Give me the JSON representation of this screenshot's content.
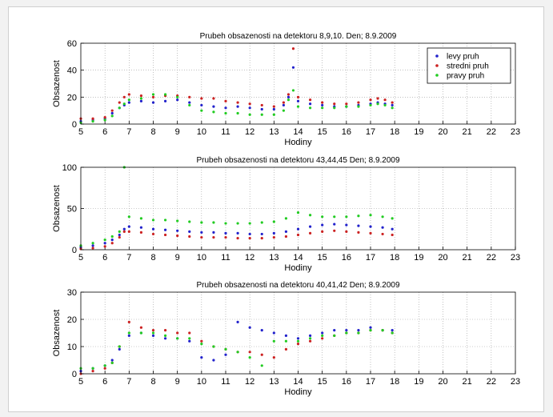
{
  "figure": {
    "legend": {
      "position": "top-right",
      "entries": [
        {
          "label": "levy pruh",
          "color": "#2222cc"
        },
        {
          "label": "stredni pruh",
          "color": "#cc2222"
        },
        {
          "label": "pravy pruh",
          "color": "#22cc22"
        }
      ]
    }
  },
  "chart_data": [
    {
      "type": "scatter",
      "title": "Prubeh obsazenosti na detektoru 8,9,10. Den; 8.9.2009",
      "xlabel": "Hodiny",
      "ylabel": "Obsazenost",
      "xlim": [
        5,
        23
      ],
      "ylim": [
        0,
        60
      ],
      "xticks": [
        5,
        6,
        7,
        8,
        9,
        10,
        11,
        12,
        13,
        14,
        15,
        16,
        17,
        18,
        19,
        20,
        21,
        22,
        23
      ],
      "yticks": [
        0,
        20,
        40,
        60
      ],
      "grid": true,
      "series": [
        {
          "name": "levy pruh",
          "color": "#2222cc",
          "x": [
            5.0,
            5.5,
            6.0,
            6.3,
            6.6,
            6.8,
            7.0,
            7.5,
            8.0,
            8.5,
            9.0,
            9.5,
            10.0,
            10.5,
            11.0,
            11.5,
            12.0,
            12.5,
            13.0,
            13.4,
            13.6,
            13.8,
            14.0,
            14.5,
            15.0,
            15.5,
            16.0,
            16.5,
            17.0,
            17.3,
            17.6,
            17.9
          ],
          "y": [
            2,
            3,
            4,
            8,
            12,
            14,
            16,
            17,
            16,
            17,
            18,
            16,
            14,
            13,
            12,
            13,
            12,
            11,
            11,
            14,
            20,
            42,
            17,
            15,
            14,
            13,
            13,
            14,
            15,
            16,
            15,
            14
          ]
        },
        {
          "name": "stredni pruh",
          "color": "#cc2222",
          "x": [
            5.0,
            5.5,
            6.0,
            6.3,
            6.6,
            6.8,
            7.0,
            7.5,
            8.0,
            8.5,
            9.0,
            9.5,
            10.0,
            10.5,
            11.0,
            11.5,
            12.0,
            12.5,
            13.0,
            13.4,
            13.6,
            13.8,
            14.0,
            14.5,
            15.0,
            15.5,
            16.0,
            16.5,
            17.0,
            17.3,
            17.6,
            17.9
          ],
          "y": [
            4,
            4,
            5,
            10,
            16,
            20,
            22,
            21,
            20,
            21,
            21,
            20,
            19,
            19,
            17,
            16,
            15,
            14,
            13,
            16,
            22,
            56,
            20,
            18,
            16,
            15,
            15,
            16,
            18,
            19,
            18,
            16
          ]
        },
        {
          "name": "pravy pruh",
          "color": "#22cc22",
          "x": [
            5.0,
            5.5,
            6.0,
            6.3,
            6.6,
            6.8,
            7.0,
            7.5,
            8.0,
            8.5,
            9.0,
            9.5,
            10.0,
            10.5,
            11.0,
            11.5,
            12.0,
            12.5,
            13.0,
            13.4,
            13.6,
            13.8,
            14.0,
            14.5,
            15.0,
            15.5,
            16.0,
            16.5,
            17.0,
            17.3,
            17.6,
            17.9
          ],
          "y": [
            1,
            2,
            3,
            6,
            12,
            15,
            18,
            19,
            22,
            22,
            20,
            14,
            10,
            9,
            8,
            8,
            7,
            7,
            7,
            10,
            18,
            25,
            13,
            12,
            12,
            12,
            13,
            13,
            14,
            15,
            14,
            12
          ]
        }
      ]
    },
    {
      "type": "scatter",
      "title": "Prubeh obsazenosti na detektoru 43,44,45 Den; 8.9.2009",
      "xlabel": "Hodiny",
      "ylabel": "Obsazenost",
      "xlim": [
        5,
        23
      ],
      "ylim": [
        0,
        100
      ],
      "xticks": [
        5,
        6,
        7,
        8,
        9,
        10,
        11,
        12,
        13,
        14,
        15,
        16,
        17,
        18,
        19,
        20,
        21,
        22,
        23
      ],
      "yticks": [
        0,
        50,
        100
      ],
      "grid": true,
      "series": [
        {
          "name": "levy pruh",
          "color": "#2222cc",
          "x": [
            5.0,
            5.5,
            6.0,
            6.3,
            6.6,
            6.8,
            7.0,
            7.5,
            8.0,
            8.5,
            9.0,
            9.5,
            10.0,
            10.5,
            11.0,
            11.5,
            12.0,
            12.5,
            13.0,
            13.5,
            14.0,
            14.5,
            15.0,
            15.5,
            16.0,
            16.5,
            17.0,
            17.5,
            17.9
          ],
          "y": [
            3,
            5,
            8,
            12,
            18,
            25,
            28,
            27,
            25,
            24,
            23,
            22,
            21,
            21,
            20,
            20,
            19,
            19,
            20,
            22,
            25,
            28,
            30,
            31,
            30,
            29,
            28,
            27,
            25
          ]
        },
        {
          "name": "stredni pruh",
          "color": "#cc2222",
          "x": [
            5.0,
            5.5,
            6.0,
            6.3,
            6.6,
            6.8,
            7.0,
            7.5,
            8.0,
            8.5,
            9.0,
            9.5,
            10.0,
            10.5,
            11.0,
            11.5,
            12.0,
            12.5,
            13.0,
            13.5,
            14.0,
            14.5,
            15.0,
            15.5,
            16.0,
            16.5,
            17.0,
            17.5,
            17.9
          ],
          "y": [
            1,
            2,
            4,
            8,
            15,
            22,
            22,
            21,
            19,
            18,
            17,
            16,
            15,
            15,
            15,
            14,
            14,
            14,
            15,
            16,
            18,
            20,
            22,
            23,
            22,
            21,
            20,
            19,
            18
          ]
        },
        {
          "name": "pravy pruh",
          "color": "#22cc22",
          "x": [
            5.0,
            5.5,
            6.0,
            6.3,
            6.6,
            6.8,
            7.0,
            7.5,
            8.0,
            8.5,
            9.0,
            9.5,
            10.0,
            10.5,
            11.0,
            11.5,
            12.0,
            12.5,
            13.0,
            13.5,
            14.0,
            14.5,
            15.0,
            15.5,
            16.0,
            16.5,
            17.0,
            17.5,
            17.9
          ],
          "y": [
            5,
            8,
            12,
            16,
            22,
            100,
            40,
            38,
            36,
            36,
            35,
            34,
            33,
            33,
            32,
            32,
            32,
            33,
            34,
            38,
            45,
            42,
            40,
            40,
            40,
            41,
            42,
            40,
            38
          ]
        }
      ]
    },
    {
      "type": "scatter",
      "title": "Prubeh obsazenosti na detektoru 40,41,42 Den; 8.9.2009",
      "xlabel": "Hodiny",
      "ylabel": "Obsazenost",
      "xlim": [
        5,
        23
      ],
      "ylim": [
        0,
        30
      ],
      "xticks": [
        5,
        6,
        7,
        8,
        9,
        10,
        11,
        12,
        13,
        14,
        15,
        16,
        17,
        18,
        19,
        20,
        21,
        22,
        23
      ],
      "yticks": [
        0,
        10,
        20,
        30
      ],
      "grid": true,
      "series": [
        {
          "name": "levy pruh",
          "color": "#2222cc",
          "x": [
            5.0,
            5.5,
            6.0,
            6.3,
            6.6,
            7.0,
            7.5,
            8.0,
            8.5,
            9.0,
            9.5,
            10.0,
            10.5,
            11.0,
            11.5,
            12.0,
            12.5,
            13.0,
            13.5,
            14.0,
            14.5,
            15.0,
            15.5,
            16.0,
            16.5,
            17.0,
            17.5,
            17.9
          ],
          "y": [
            1,
            2,
            3,
            5,
            9,
            14,
            15,
            14,
            13,
            13,
            12,
            6,
            5,
            7,
            19,
            17,
            16,
            15,
            14,
            13,
            14,
            15,
            16,
            16,
            16,
            17,
            16,
            16
          ]
        },
        {
          "name": "stredni pruh",
          "color": "#cc2222",
          "x": [
            5.0,
            5.5,
            6.0,
            6.3,
            6.6,
            7.0,
            7.5,
            8.0,
            8.5,
            9.0,
            9.5,
            10.0,
            10.5,
            11.0,
            11.5,
            12.0,
            12.5,
            13.0,
            13.5,
            14.0,
            14.5,
            15.0,
            15.5,
            16.0,
            16.5,
            17.0,
            17.5,
            17.9
          ],
          "y": [
            0,
            1,
            2,
            4,
            10,
            19,
            17,
            16,
            16,
            15,
            15,
            12,
            10,
            9,
            8,
            8,
            7,
            6,
            9,
            11,
            12,
            13,
            14,
            15,
            15,
            16,
            16,
            15
          ]
        },
        {
          "name": "pravy pruh",
          "color": "#22cc22",
          "x": [
            5.0,
            5.5,
            6.0,
            6.3,
            6.6,
            7.0,
            7.5,
            8.0,
            8.5,
            9.0,
            9.5,
            10.0,
            10.5,
            11.0,
            11.5,
            12.0,
            12.5,
            13.0,
            13.5,
            14.0,
            14.5,
            15.0,
            15.5,
            16.0,
            16.5,
            17.0,
            17.5,
            17.9
          ],
          "y": [
            2,
            2,
            3,
            4,
            10,
            15,
            15,
            15,
            14,
            13,
            13,
            11,
            10,
            9,
            8,
            6,
            3,
            12,
            12,
            12,
            13,
            14,
            14,
            15,
            15,
            16,
            16,
            15
          ]
        }
      ]
    }
  ]
}
